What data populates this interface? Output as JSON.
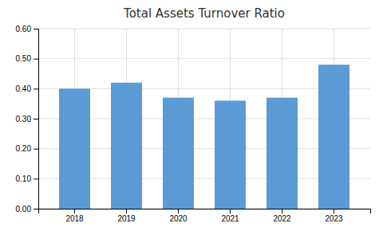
{
  "chart_data": {
    "type": "bar",
    "title": "Total Assets Turnover Ratio",
    "categories": [
      "2018",
      "2019",
      "2020",
      "2021",
      "2022",
      "2023"
    ],
    "values": [
      0.4,
      0.42,
      0.37,
      0.36,
      0.37,
      0.48
    ],
    "color": "#5b9bd5",
    "ylim": [
      0.0,
      0.6
    ],
    "yticks": [
      {
        "value": 0.0,
        "label": "0.00"
      },
      {
        "value": 0.1,
        "label": "0.10"
      },
      {
        "value": 0.2,
        "label": "0.20"
      },
      {
        "value": 0.3,
        "label": "0.30"
      },
      {
        "value": 0.4,
        "label": "0.40"
      },
      {
        "value": 0.5,
        "label": "0.50"
      },
      {
        "value": 0.6,
        "label": "0.60"
      }
    ],
    "grid": true
  }
}
